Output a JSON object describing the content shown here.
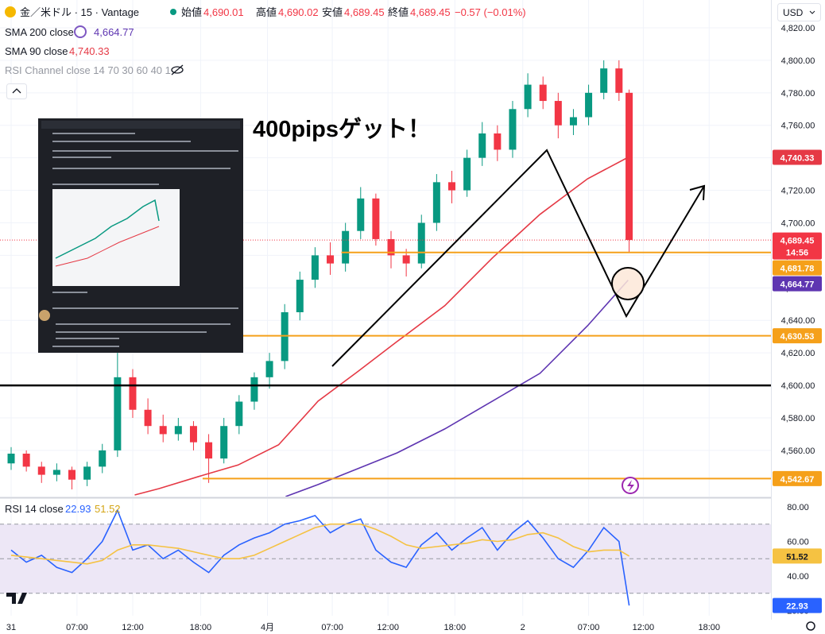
{
  "header": {
    "symbol": "金／米ドル · 15 · Vantage",
    "open_label": "始値",
    "open": "4,690.01",
    "high_label": "高値",
    "high": "4,690.02",
    "low_label": "安値",
    "low": "4,689.45",
    "close_label": "終値",
    "close": "4,689.45",
    "change": "−0.57 (−0.01%)",
    "currency": "USD",
    "indicator": "RSI Channel close 14 70 30 60 40 1"
  },
  "chart_data": [
    {
      "type": "candlestick",
      "annotation": "400pipsゲット！",
      "up_color": "#089981",
      "down_color": "#f23645",
      "grid": true,
      "xlim": [
        -1.1,
        75
      ],
      "ylim": [
        4531.6,
        4837.1
      ],
      "xticks": [
        {
          "value": 0,
          "label": "31"
        },
        {
          "value": 6.5,
          "label": "07:00"
        },
        {
          "value": 12,
          "label": "12:00"
        },
        {
          "value": 18.7,
          "label": "18:00"
        },
        {
          "value": 25.3,
          "label": "4月"
        },
        {
          "value": 31.7,
          "label": "07:00"
        },
        {
          "value": 37.2,
          "label": "12:00"
        },
        {
          "value": 43.8,
          "label": "18:00"
        },
        {
          "value": 50.5,
          "label": "2"
        },
        {
          "value": 57,
          "label": "07:00"
        },
        {
          "value": 62.4,
          "label": "12:00"
        },
        {
          "value": 68.9,
          "label": "18:00"
        }
      ],
      "yticks": [
        {
          "value": 4560,
          "label": "4,560.00"
        },
        {
          "value": 4580,
          "label": "4,580.00"
        },
        {
          "value": 4600,
          "label": "4,600.00"
        },
        {
          "value": 4620,
          "label": "4,620.00"
        },
        {
          "value": 4640,
          "label": "4,640.00"
        },
        {
          "value": 4660,
          "label": "4,660.00"
        },
        {
          "value": 4680,
          "label": "4,680.00"
        },
        {
          "value": 4700,
          "label": "4,700.00"
        },
        {
          "value": 4720,
          "label": "4,720.00"
        },
        {
          "value": 4740,
          "label": "4,740.00"
        },
        {
          "value": 4760,
          "label": "4,760.00"
        },
        {
          "value": 4780,
          "label": "4,780.00"
        },
        {
          "value": 4800,
          "label": "4,800.00"
        },
        {
          "value": 4820,
          "label": "4,820.00"
        }
      ],
      "candles": {
        "x": [
          0,
          1.5,
          3,
          4.5,
          6,
          7.5,
          9,
          10.5,
          12,
          13.5,
          15,
          16.5,
          18,
          19.5,
          21,
          22.5,
          24,
          25.5,
          27,
          28.5,
          30,
          31.5,
          33,
          34.5,
          36,
          37.5,
          39,
          40.5,
          42,
          43.5,
          45,
          46.5,
          48,
          49.5,
          51,
          52.5,
          54,
          55.5,
          57,
          58.5,
          60,
          61
        ],
        "open": [
          4552,
          4558,
          4550,
          4545,
          4548,
          4542,
          4550,
          4560,
          4605,
          4585,
          4575,
          4570,
          4575,
          4565,
          4555,
          4575,
          4590,
          4605,
          4615,
          4645,
          4665,
          4680,
          4675,
          4695,
          4715,
          4690,
          4680,
          4675,
          4700,
          4725,
          4720,
          4740,
          4755,
          4745,
          4770,
          4785,
          4775,
          4760,
          4765,
          4780,
          4795,
          4780
        ],
        "high": [
          4562,
          4560,
          4553,
          4552,
          4550,
          4553,
          4564,
          4620,
          4610,
          4592,
          4582,
          4580,
          4578,
          4570,
          4580,
          4594,
          4608,
          4620,
          4650,
          4670,
          4685,
          4688,
          4700,
          4722,
          4718,
          4695,
          4684,
          4705,
          4730,
          4732,
          4745,
          4762,
          4760,
          4775,
          4792,
          4790,
          4780,
          4770,
          4785,
          4800,
          4800,
          4782
        ],
        "low": [
          4548,
          4547,
          4540,
          4541,
          4536,
          4538,
          4546,
          4556,
          4580,
          4570,
          4565,
          4566,
          4560,
          4540,
          4552,
          4570,
          4585,
          4598,
          4610,
          4640,
          4660,
          4668,
          4670,
          4690,
          4686,
          4672,
          4667,
          4672,
          4695,
          4712,
          4716,
          4735,
          4738,
          4740,
          4765,
          4770,
          4752,
          4754,
          4760,
          4776,
          4775,
          4682
        ],
        "close": [
          4558,
          4550,
          4545,
          4548,
          4542,
          4550,
          4560,
          4605,
          4585,
          4575,
          4570,
          4575,
          4565,
          4555,
          4575,
          4590,
          4605,
          4615,
          4645,
          4665,
          4680,
          4675,
          4695,
          4715,
          4690,
          4680,
          4675,
          4700,
          4725,
          4720,
          4740,
          4755,
          4745,
          4770,
          4785,
          4775,
          4760,
          4765,
          4780,
          4795,
          4780,
          4689.45
        ]
      },
      "series": [
        {
          "name": "SMA 200 close",
          "color": "#5e35b1",
          "last_value_label": "4,664.77",
          "x": [
            27.1,
            30.3,
            34.2,
            38.1,
            42.8,
            47.5,
            52.2,
            56.9,
            60.9
          ],
          "values": [
            4531.6,
            4539,
            4548.7,
            4558.5,
            4573.2,
            4590.3,
            4607.4,
            4636.7,
            4664.77
          ]
        },
        {
          "name": "SMA 90 close",
          "color": "#e53945",
          "last_value_label": "4,740.33",
          "x": [
            12.2,
            14.6,
            18.5,
            22.4,
            26.4,
            30.3,
            34.2,
            38.1,
            42.8,
            47.5,
            52.2,
            56.9,
            60.9
          ],
          "values": [
            4532.6,
            4536.5,
            4543.9,
            4551,
            4563.4,
            4590.3,
            4608.4,
            4627,
            4649,
            4678.4,
            4705.2,
            4727.1,
            4740.33
          ]
        }
      ],
      "levels": [
        {
          "value": 4681.78,
          "label": "4,681.78",
          "color": "#f5a01a",
          "x_start": 32.6
        },
        {
          "value": 4630.53,
          "label": "4,630.53",
          "color": "#f5a01a",
          "x_start": 20
        },
        {
          "value": 4542.67,
          "label": "4,542.67",
          "color": "#f5a01a",
          "x_start": 18.9
        },
        {
          "value": 4600,
          "color": "#000000",
          "x_start": -1.1
        }
      ],
      "last_price": {
        "value": 4689.45,
        "label": "4,689.45",
        "countdown": "14:56",
        "color": "#f23645"
      }
    },
    {
      "type": "line",
      "title": "RSI 14 close",
      "xlim": [
        -1.1,
        75
      ],
      "ylim": [
        17,
        84.6
      ],
      "yticks": [
        {
          "value": 80,
          "label": "80.00"
        },
        {
          "value": 60,
          "label": "60.00"
        },
        {
          "value": 40,
          "label": "40.00"
        },
        {
          "value": 20,
          "label": "20.00"
        }
      ],
      "bands": [
        70,
        50,
        30
      ],
      "band_color": "#ede7f6",
      "series": [
        {
          "color": "#2962ff",
          "label_text_color": "#ffffff",
          "last_value_label": "22.93",
          "x": [
            0,
            1.5,
            3,
            4.5,
            6,
            7.5,
            9,
            10.5,
            12,
            13.5,
            15,
            16.5,
            18,
            19.5,
            21,
            22.5,
            24,
            25.5,
            27,
            28.5,
            30,
            31.5,
            33,
            34.5,
            36,
            37.5,
            39,
            40.5,
            42,
            43.5,
            45,
            46.5,
            48,
            49.5,
            51,
            52.5,
            54,
            55.5,
            57,
            58.5,
            60,
            61
          ],
          "values": [
            55,
            48,
            52,
            45,
            42,
            50,
            60,
            78,
            55,
            58,
            50,
            55,
            48,
            42,
            52,
            58,
            62,
            65,
            70,
            72,
            75,
            65,
            70,
            73,
            55,
            48,
            45,
            58,
            65,
            55,
            62,
            68,
            55,
            65,
            72,
            62,
            50,
            45,
            55,
            68,
            60,
            22.93
          ]
        },
        {
          "color": "#f5c242",
          "label_text_color": "#131722",
          "last_value_label": "51.52",
          "x": [
            0,
            1.5,
            3,
            4.5,
            6,
            7.5,
            9,
            10.5,
            12,
            13.5,
            15,
            16.5,
            18,
            19.5,
            21,
            22.5,
            24,
            25.5,
            27,
            28.5,
            30,
            31.5,
            33,
            34.5,
            36,
            37.5,
            39,
            40.5,
            42,
            43.5,
            45,
            46.5,
            48,
            49.5,
            51,
            52.5,
            54,
            55.5,
            57,
            58.5,
            60,
            61
          ],
          "values": [
            52,
            51,
            50,
            49,
            48,
            47,
            49,
            55,
            58,
            58,
            57,
            56,
            54,
            52,
            50,
            50,
            52,
            56,
            60,
            64,
            68,
            70,
            70,
            70,
            67,
            63,
            58,
            56,
            57,
            58,
            59,
            61,
            60,
            61,
            64,
            65,
            62,
            57,
            54,
            55,
            55,
            51.52
          ]
        }
      ]
    }
  ]
}
